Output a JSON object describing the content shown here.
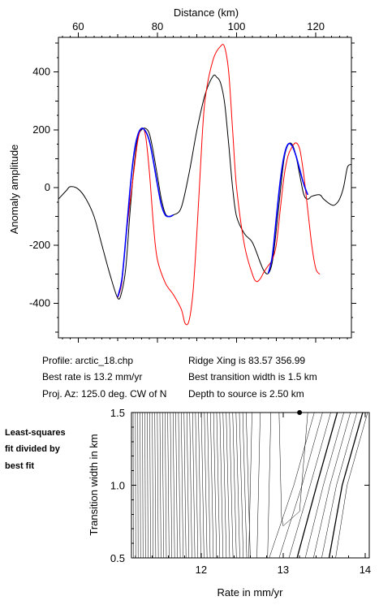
{
  "chart_data": [
    {
      "type": "line",
      "title": "",
      "xlabel": "Distance (km)",
      "ylabel": "Anomaly amplitude",
      "xlim": [
        55,
        129
      ],
      "ylim": [
        -520,
        520
      ],
      "x_ticks": [
        60,
        80,
        100,
        120
      ],
      "y_ticks": [
        -400,
        -200,
        0,
        200,
        400
      ],
      "grid": false,
      "series": [
        {
          "color": "#000000",
          "points": [
            [
              55,
              -40
            ],
            [
              57,
              -10
            ],
            [
              58,
              3
            ],
            [
              60,
              -5
            ],
            [
              62,
              -40
            ],
            [
              64,
              -100
            ],
            [
              66,
              -200
            ],
            [
              68,
              -300
            ],
            [
              70,
              -383
            ],
            [
              71,
              -360
            ],
            [
              72,
              -280
            ],
            [
              73,
              -100
            ],
            [
              74,
              60
            ],
            [
              75,
              170
            ],
            [
              76,
              200
            ],
            [
              77,
              205
            ],
            [
              78,
              185
            ],
            [
              79,
              120
            ],
            [
              80,
              40
            ],
            [
              81,
              -40
            ],
            [
              82,
              -90
            ],
            [
              83,
              -100
            ],
            [
              84,
              -95
            ],
            [
              86,
              -70
            ],
            [
              88,
              50
            ],
            [
              90,
              200
            ],
            [
              92,
              320
            ],
            [
              94,
              385
            ],
            [
              95,
              382
            ],
            [
              96,
              360
            ],
            [
              97,
              290
            ],
            [
              98,
              150
            ],
            [
              99,
              0
            ],
            [
              100,
              -100
            ],
            [
              102,
              -160
            ],
            [
              104,
              -190
            ],
            [
              106,
              -260
            ],
            [
              107,
              -290
            ],
            [
              108,
              -297
            ],
            [
              109,
              -260
            ],
            [
              110,
              -150
            ],
            [
              111,
              -20
            ],
            [
              112,
              100
            ],
            [
              113,
              148
            ],
            [
              114,
              150
            ],
            [
              115,
              110
            ],
            [
              116,
              40
            ],
            [
              117,
              -25
            ],
            [
              118,
              -40
            ],
            [
              119,
              -30
            ],
            [
              121,
              -25
            ],
            [
              122,
              -40
            ],
            [
              124,
              -60
            ],
            [
              125,
              -58
            ],
            [
              126,
              -40
            ],
            [
              127,
              0
            ],
            [
              128,
              70
            ],
            [
              129,
              80
            ]
          ]
        },
        {
          "color": "#ff0000",
          "points": [
            [
              70,
              -380
            ],
            [
              71,
              -330
            ],
            [
              72,
              -180
            ],
            [
              73,
              -60
            ],
            [
              74,
              50
            ],
            [
              75,
              160
            ],
            [
              76,
              205
            ],
            [
              77,
              180
            ],
            [
              78,
              50
            ],
            [
              79,
              -130
            ],
            [
              80,
              -250
            ],
            [
              82,
              -330
            ],
            [
              84,
              -370
            ],
            [
              86,
              -420
            ],
            [
              87,
              -470
            ],
            [
              88,
              -460
            ],
            [
              89,
              -360
            ],
            [
              90,
              -150
            ],
            [
              91,
              100
            ],
            [
              92,
              300
            ],
            [
              94,
              440
            ],
            [
              96,
              490
            ],
            [
              97,
              485
            ],
            [
              98,
              400
            ],
            [
              99,
              200
            ],
            [
              100,
              0
            ],
            [
              102,
              -200
            ],
            [
              104,
              -300
            ],
            [
              105,
              -325
            ],
            [
              106,
              -315
            ],
            [
              107,
              -290
            ],
            [
              108,
              -270
            ],
            [
              109,
              -250
            ],
            [
              110,
              -200
            ],
            [
              111,
              -80
            ],
            [
              112,
              40
            ],
            [
              113,
              110
            ],
            [
              114,
              140
            ],
            [
              115,
              155
            ],
            [
              116,
              130
            ],
            [
              117,
              40
            ],
            [
              118,
              -80
            ],
            [
              119,
              -200
            ],
            [
              120,
              -280
            ],
            [
              121,
              -300
            ]
          ]
        },
        {
          "color": "#0000ff",
          "points": [
            [
              70,
              -378
            ],
            [
              71,
              -320
            ],
            [
              72,
              -180
            ],
            [
              73,
              -20
            ],
            [
              74,
              110
            ],
            [
              75,
              180
            ],
            [
              76,
              205
            ],
            [
              77,
              195
            ],
            [
              78,
              160
            ],
            [
              79,
              90
            ],
            [
              80,
              10
            ],
            [
              81,
              -60
            ],
            [
              82,
              -95
            ],
            [
              83,
              -100
            ],
            [
              84,
              -95
            ]
          ]
        },
        {
          "color": "#0000ff",
          "points": [
            [
              108,
              -297
            ],
            [
              109,
              -240
            ],
            [
              110,
              -110
            ],
            [
              111,
              20
            ],
            [
              112,
              110
            ],
            [
              113,
              150
            ],
            [
              114,
              145
            ],
            [
              115,
              110
            ],
            [
              116,
              60
            ],
            [
              117,
              10
            ],
            [
              118,
              -25
            ]
          ]
        }
      ]
    },
    {
      "type": "contour",
      "title": "",
      "xlabel": "Rate in mm/yr",
      "ylabel": "Transition width in km",
      "xlim": [
        11.15,
        14.05
      ],
      "ylim": [
        0.5,
        1.5
      ],
      "x_ticks": [
        12,
        13,
        14
      ],
      "y_ticks": [
        0.5,
        1.0,
        1.5
      ],
      "best_fit_marker": [
        13.2,
        1.5
      ]
    }
  ],
  "info": {
    "profile": "Profile: arctic_18.chp",
    "best_rate": "Best rate is 13.2 mm/yr",
    "proj_az": "Proj. Az: 125.0 deg. CW of N",
    "ridge_xing": "Ridge Xing is 83.57 356.99",
    "best_width": "Best transition width is 1.5 km",
    "depth": "Depth to source is   2.50 km"
  },
  "side_note": [
    "Least-squares",
    "fit divided by",
    "best fit"
  ]
}
